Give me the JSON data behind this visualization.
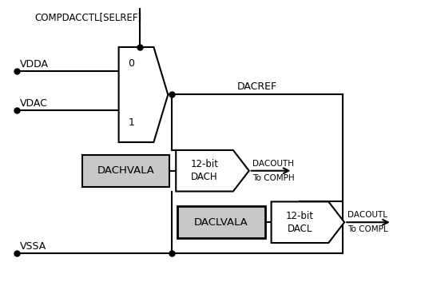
{
  "fig_width": 5.27,
  "fig_height": 3.58,
  "dpi": 100,
  "bg_color": "#ffffff",
  "black": "#000000",
  "gray_fill": "#c8c8c8",
  "white_fill": "#ffffff",
  "lw": 1.5,
  "compdac_label": "COMPDACCTL[SELREF]",
  "vdda_label": "VDDA",
  "vdac_label": "VDAC",
  "vssa_label": "VSSA",
  "dacref_label": "DACREF",
  "dachvala_label": "DACHVALA",
  "dacouth_label": "DACOUTH",
  "to_comph_label": "To COMPH",
  "daclvala_label": "DACLVALA",
  "dacoutl_label": "DACOUTL",
  "to_compl_label": "To COMPL",
  "mux_label_0": "0",
  "mux_label_1": "1"
}
